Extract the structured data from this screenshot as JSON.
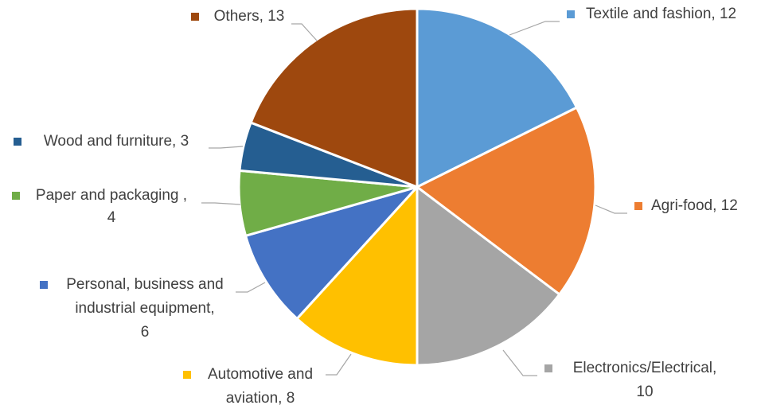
{
  "chart_data": {
    "type": "pie",
    "title": "",
    "slices": [
      {
        "label": "Textile and fashion",
        "value": 12,
        "color": "#5b9bd5",
        "lines": [
          "Textile and fashion, 12"
        ]
      },
      {
        "label": "Agri-food",
        "value": 12,
        "color": "#ed7d31",
        "lines": [
          "Agri-food, 12"
        ]
      },
      {
        "label": "Electronics/Electrical",
        "value": 10,
        "color": "#a5a5a5",
        "lines": [
          "Electronics/Electrical,",
          "10"
        ]
      },
      {
        "label": "Automotive and aviation",
        "value": 8,
        "color": "#ffc000",
        "lines": [
          "Automotive and",
          "aviation, 8"
        ]
      },
      {
        "label": "Personal, business and industrial equipment",
        "value": 6,
        "color": "#4472c4",
        "lines": [
          "Personal, business and",
          "industrial equipment,",
          "6"
        ]
      },
      {
        "label": "Paper and packaging",
        "value": 4,
        "color": "#70ad47",
        "lines": [
          "Paper and packaging ,",
          "4"
        ]
      },
      {
        "label": "Wood and furniture",
        "value": 3,
        "color": "#255e91",
        "lines": [
          "Wood and furniture, 3"
        ]
      },
      {
        "label": "Others",
        "value": 13,
        "color": "#9e480e",
        "lines": [
          "Others, 13"
        ]
      }
    ]
  }
}
